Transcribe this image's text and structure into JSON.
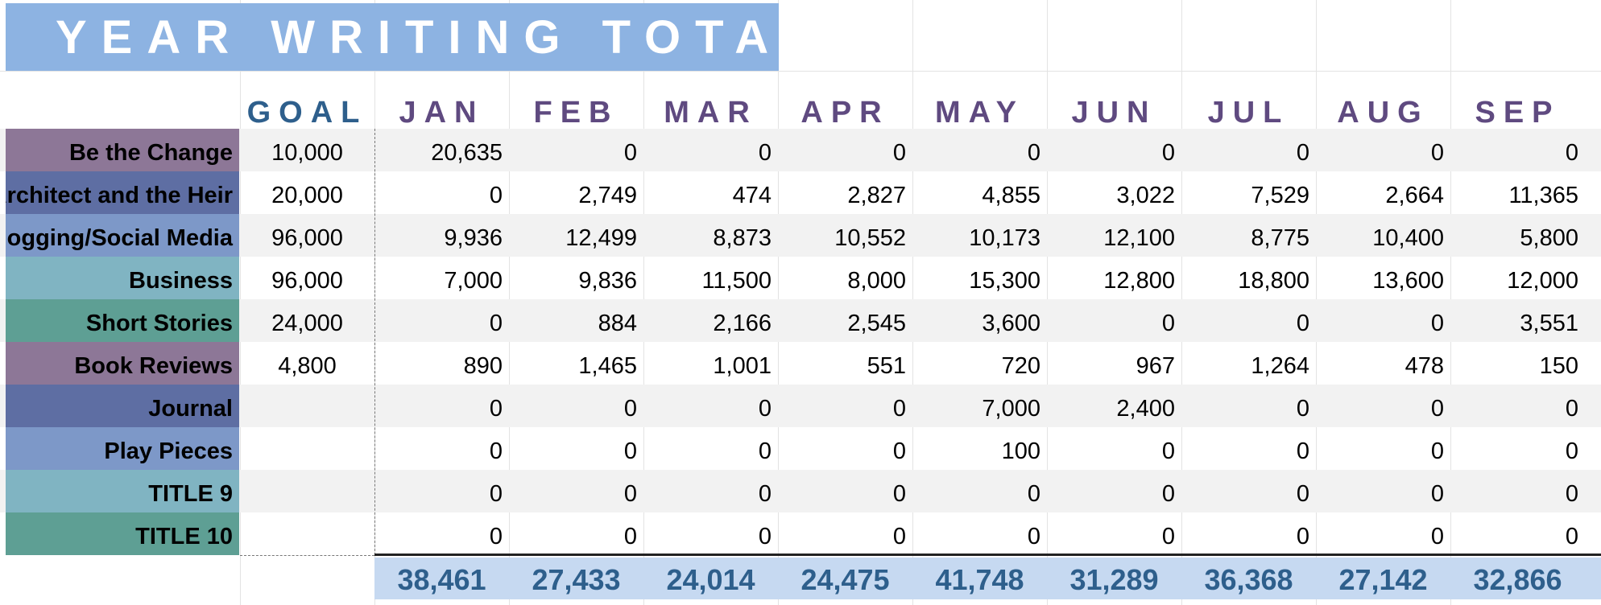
{
  "title": "YEAR WRITING TOTAL",
  "headers": {
    "goal": "GOAL",
    "months": [
      "JAN",
      "FEB",
      "MAR",
      "APR",
      "MAY",
      "JUN",
      "JUL",
      "AUG",
      "SEP"
    ]
  },
  "colors": {
    "title_bg": "#8db3e2",
    "goal_header": "#2e5f8c",
    "month_header": "#5f4a80",
    "totals_bg": "#c6d9f1",
    "totals_text": "#2e5f8c"
  },
  "rows": [
    {
      "label": "Be the Change",
      "goal": "10,000",
      "values": [
        "20,635",
        "0",
        "0",
        "0",
        "0",
        "0",
        "0",
        "0",
        "0"
      ],
      "color": "#8d7797"
    },
    {
      "label": "The Architect and the Heir",
      "goal": "20,000",
      "values": [
        "0",
        "2,749",
        "474",
        "2,827",
        "4,855",
        "3,022",
        "7,529",
        "2,664",
        "11,365"
      ],
      "color": "#5e6ea3"
    },
    {
      "label": "Blogging/Social Media",
      "goal": "96,000",
      "values": [
        "9,936",
        "12,499",
        "8,873",
        "10,552",
        "10,173",
        "12,100",
        "8,775",
        "10,400",
        "5,800"
      ],
      "color": "#7d98c8"
    },
    {
      "label": "Business",
      "goal": "96,000",
      "values": [
        "7,000",
        "9,836",
        "11,500",
        "8,000",
        "15,300",
        "12,800",
        "18,800",
        "13,600",
        "12,000"
      ],
      "color": "#80b4c2"
    },
    {
      "label": "Short Stories",
      "goal": "24,000",
      "values": [
        "0",
        "884",
        "2,166",
        "2,545",
        "3,600",
        "0",
        "0",
        "0",
        "3,551"
      ],
      "color": "#5e9f94"
    },
    {
      "label": "Book Reviews",
      "goal": "4,800",
      "values": [
        "890",
        "1,465",
        "1,001",
        "551",
        "720",
        "967",
        "1,264",
        "478",
        "150"
      ],
      "color": "#8d7797"
    },
    {
      "label": "Journal",
      "goal": "",
      "values": [
        "0",
        "0",
        "0",
        "0",
        "7,000",
        "2,400",
        "0",
        "0",
        "0"
      ],
      "color": "#5e6ea3"
    },
    {
      "label": "Play Pieces",
      "goal": "",
      "values": [
        "0",
        "0",
        "0",
        "0",
        "100",
        "0",
        "0",
        "0",
        "0"
      ],
      "color": "#7d98c8"
    },
    {
      "label": "TITLE 9",
      "goal": "",
      "values": [
        "0",
        "0",
        "0",
        "0",
        "0",
        "0",
        "0",
        "0",
        "0"
      ],
      "color": "#80b4c2"
    },
    {
      "label": "TITLE 10",
      "goal": "",
      "values": [
        "0",
        "0",
        "0",
        "0",
        "0",
        "0",
        "0",
        "0",
        "0"
      ],
      "color": "#5e9f94"
    }
  ],
  "totals": [
    "38,461",
    "27,433",
    "24,014",
    "24,475",
    "41,748",
    "31,289",
    "36,368",
    "27,142",
    "32,866"
  ]
}
